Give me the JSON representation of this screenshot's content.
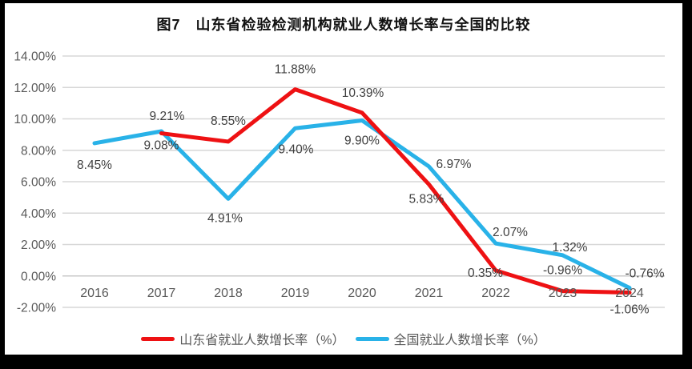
{
  "title": "图7　山东省检验检测机构就业人数增长率与全国的比较",
  "colors": {
    "frame_border": "#000000",
    "background": "#ffffff",
    "grid": "#d7d7d7",
    "zero_line": "#c9c9c9",
    "axis_text": "#595959",
    "data_label_text": "#3f3f3f",
    "shandong_red": "#ee1113",
    "national_blue": "#29b2e8"
  },
  "chart_data": {
    "type": "line",
    "title": "图7　山东省检验检测机构就业人数增长率与全国的比较",
    "x": [
      "2016",
      "2017",
      "2018",
      "2019",
      "2020",
      "2021",
      "2022",
      "2023",
      "2024"
    ],
    "xlabel": "",
    "ylabel": "",
    "ylim": [
      -2,
      14
    ],
    "ytick_values": [
      14,
      12,
      10,
      8,
      6,
      4,
      2,
      0,
      -2
    ],
    "ytick_labels": [
      "14.00%",
      "12.00%",
      "10.00%",
      "8.00%",
      "6.00%",
      "4.00%",
      "2.00%",
      "0.00%",
      "-2.00%"
    ],
    "grid": true,
    "legend_position": "bottom",
    "series": [
      {
        "name": "全国就业人数增长率（%）",
        "color": "#29b2e8",
        "values": [
          8.45,
          9.21,
          4.91,
          9.4,
          9.9,
          6.97,
          2.07,
          1.32,
          -0.76
        ],
        "point_labels": [
          "8.45%",
          "9.21%",
          "4.91%",
          "9.40%",
          "9.90%",
          "6.97%",
          "2.07%",
          "1.32%",
          "-0.76%"
        ],
        "label_offsets": [
          [
            0,
            27
          ],
          [
            7,
            -19
          ],
          [
            -4,
            24
          ],
          [
            1,
            26
          ],
          [
            0,
            25
          ],
          [
            31,
            -3
          ],
          [
            18,
            -14
          ],
          [
            9,
            -10
          ],
          [
            19,
            -18
          ]
        ]
      },
      {
        "name": "山东省就业人数增长率（%）",
        "color": "#ee1113",
        "values": [
          null,
          9.08,
          8.55,
          11.88,
          10.39,
          5.83,
          0.35,
          -0.96,
          -1.06
        ],
        "point_labels": [
          null,
          "9.08%",
          "8.55%",
          "11.88%",
          "10.39%",
          "5.83%",
          "0.35%",
          "-0.96%",
          "-1.06%"
        ],
        "label_offsets": [
          null,
          [
            0,
            15
          ],
          [
            0,
            -26
          ],
          [
            0,
            -25
          ],
          [
            1,
            -25
          ],
          [
            -3,
            18
          ],
          [
            -13,
            3
          ],
          [
            0,
            -26
          ],
          [
            0,
            21
          ]
        ]
      }
    ],
    "legend_order": [
      1,
      0
    ]
  }
}
